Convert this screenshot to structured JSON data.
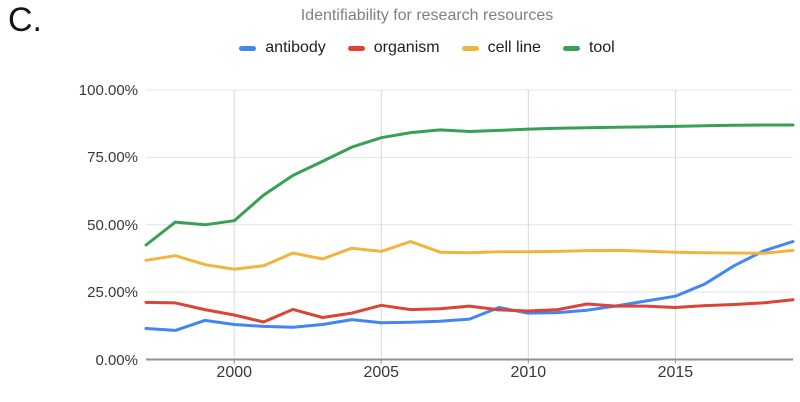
{
  "panel_label": "C.",
  "theme": {
    "background": "#ffffff",
    "panel_label_color": "#141414",
    "title_color": "#818181",
    "legend_label_color": "#1f1f1f",
    "tick_label_color": "#383838",
    "grid_color": "#e4e4e4",
    "vgrid_color": "#d7d7d7",
    "axis_color": "#8f8f8f"
  },
  "chart_data": {
    "type": "line",
    "title": "Identifiability for research resources",
    "xlabel": "",
    "ylabel": "",
    "xlim": [
      1997,
      2019
    ],
    "ylim": [
      0,
      100
    ],
    "grid": true,
    "legend_position": "top-center",
    "x": [
      1997,
      1998,
      1999,
      2000,
      2001,
      2002,
      2003,
      2004,
      2005,
      2006,
      2007,
      2008,
      2009,
      2010,
      2011,
      2012,
      2013,
      2014,
      2015,
      2016,
      2017,
      2018,
      2019
    ],
    "x_ticks": {
      "values": [
        2000,
        2005,
        2010,
        2015
      ],
      "labels": [
        "2000",
        "2005",
        "2010",
        "2015"
      ]
    },
    "y_ticks": {
      "values": [
        0,
        25,
        50,
        75,
        100
      ],
      "labels": [
        "0.00%",
        "25.00%",
        "50.00%",
        "75.00%",
        "100.00%"
      ]
    },
    "series": [
      {
        "name": "antibody",
        "color": "#4285f4",
        "values": [
          11.5,
          10.8,
          14.5,
          13.0,
          12.3,
          12.0,
          13.0,
          14.8,
          13.6,
          13.8,
          14.2,
          15.0,
          19.3,
          17.2,
          17.4,
          18.3,
          19.9,
          21.7,
          23.5,
          28.0,
          34.8,
          40.3,
          43.8
        ]
      },
      {
        "name": "organism",
        "color": "#db4437",
        "values": [
          21.2,
          21.0,
          18.5,
          16.5,
          13.9,
          18.6,
          15.6,
          17.2,
          20.1,
          18.5,
          18.8,
          19.8,
          18.4,
          18.0,
          18.5,
          20.6,
          19.8,
          19.8,
          19.3,
          20.0,
          20.4,
          21.0,
          22.2
        ]
      },
      {
        "name": "cell line",
        "color": "#f1b53d",
        "values": [
          36.8,
          38.5,
          35.2,
          33.5,
          34.8,
          39.5,
          37.3,
          41.3,
          40.1,
          43.8,
          39.8,
          39.6,
          40.0,
          40.0,
          40.1,
          40.4,
          40.5,
          40.2,
          39.8,
          39.6,
          39.5,
          39.4,
          40.5
        ]
      },
      {
        "name": "tool",
        "color": "#37a055",
        "values": [
          42.5,
          51.0,
          50.0,
          51.5,
          61.0,
          68.3,
          73.5,
          78.8,
          82.3,
          84.2,
          85.2,
          84.6,
          85.0,
          85.5,
          85.8,
          86.0,
          86.2,
          86.3,
          86.5,
          86.7,
          86.9,
          87.0,
          87.0
        ]
      }
    ]
  }
}
